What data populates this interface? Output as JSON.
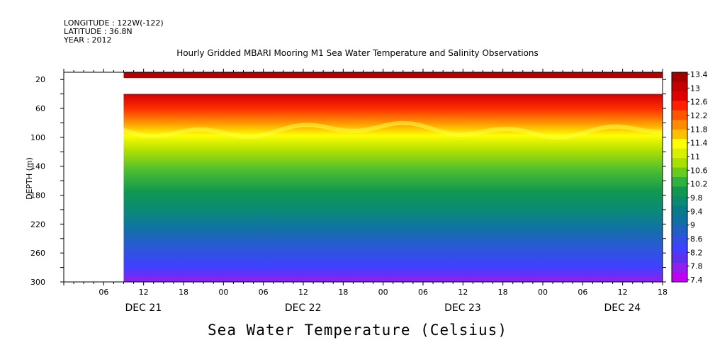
{
  "header": {
    "longitude": "LONGITUDE : 122W(-122)",
    "latitude": "LATITUDE : 36.8N",
    "year": "YEAR : 2012"
  },
  "bottom_label": "Sea Water Temperature (Celsius)",
  "chart_data": {
    "type": "heatmap",
    "title": "Hourly Gridded MBARI Mooring M1 Sea Water Temperature and Salinity Observations",
    "ylabel": "DEPTH (m)",
    "xlabel": "",
    "ylim": [
      300,
      10
    ],
    "y_ticks": [
      20,
      60,
      100,
      140,
      180,
      220,
      260,
      300
    ],
    "x_tick_labels": [
      "06",
      "12",
      "18",
      "00",
      "06",
      "12",
      "18",
      "00",
      "06",
      "12",
      "18",
      "00",
      "06",
      "12",
      "18"
    ],
    "x_date_labels": [
      "DEC 21",
      "DEC 22",
      "DEC 23",
      "DEC 24"
    ],
    "colorbar": {
      "labels": [
        "13.4",
        "13",
        "12.6",
        "12.2",
        "11.8",
        "11.4",
        "11",
        "10.6",
        "10.2",
        "9.8",
        "9.4",
        "9",
        "8.6",
        "8.2",
        "7.8",
        "7.4"
      ],
      "colors": [
        "#a50000",
        "#c40000",
        "#e00000",
        "#ff2000",
        "#ff5500",
        "#ff8c00",
        "#ffc000",
        "#ffff00",
        "#d8f000",
        "#a8e000",
        "#68cc20",
        "#30b040",
        "#109850",
        "#0a8a70",
        "#0a7a88",
        "#1070a0",
        "#2060c0",
        "#3050e0",
        "#4040ff",
        "#6030f0",
        "#9020f0",
        "#c000f0"
      ]
    },
    "surface_layer": {
      "depth_range": [
        10,
        18
      ],
      "value": 13.3
    },
    "data_gap": {
      "depth_range": [
        18,
        40
      ]
    },
    "data_start": "DEC 21 09:00",
    "data_end": "DEC 24 18:00",
    "depth_profile": [
      {
        "depth": 40,
        "temperature": 13.0
      },
      {
        "depth": 60,
        "temperature": 12.4
      },
      {
        "depth": 80,
        "temperature": 11.9
      },
      {
        "depth": 100,
        "temperature": 11.0
      },
      {
        "depth": 120,
        "temperature": 10.4
      },
      {
        "depth": 140,
        "temperature": 10.0
      },
      {
        "depth": 160,
        "temperature": 9.7
      },
      {
        "depth": 180,
        "temperature": 9.4
      },
      {
        "depth": 200,
        "temperature": 9.1
      },
      {
        "depth": 220,
        "temperature": 8.9
      },
      {
        "depth": 240,
        "temperature": 8.6
      },
      {
        "depth": 260,
        "temperature": 8.3
      },
      {
        "depth": 280,
        "temperature": 8.0
      },
      {
        "depth": 300,
        "temperature": 7.7
      }
    ]
  }
}
